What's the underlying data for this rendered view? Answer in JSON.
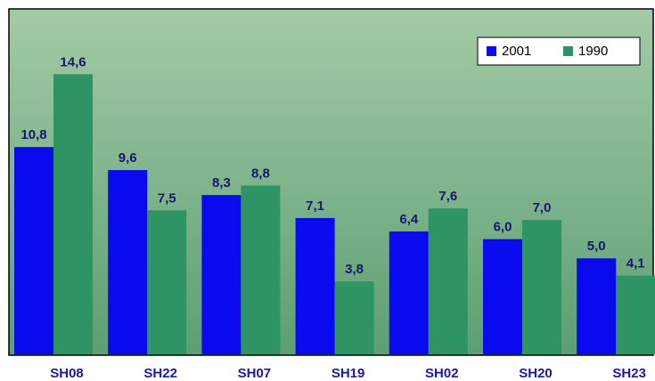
{
  "chart_data": {
    "type": "bar",
    "categories": [
      "SH08",
      "SH22",
      "SH07",
      "SH19",
      "SH02",
      "SH20",
      "SH23"
    ],
    "series": [
      {
        "name": "2001",
        "color": "#0a0aee",
        "values": [
          10.8,
          9.6,
          8.3,
          7.1,
          6.4,
          6.0,
          5.0
        ],
        "value_labels": [
          "10,8",
          "9,6",
          "8,3",
          "7,1",
          "6,4",
          "6,0",
          "5,0"
        ]
      },
      {
        "name": "1990",
        "color": "#2e9463",
        "values": [
          14.6,
          7.5,
          8.8,
          3.8,
          7.6,
          7.0,
          4.1
        ],
        "value_labels": [
          "14,6",
          "7,5",
          "8,8",
          "3,8",
          "7,6",
          "7,0",
          "4,1"
        ]
      }
    ],
    "ylim": [
      0,
      18
    ],
    "legend": "top-right"
  }
}
